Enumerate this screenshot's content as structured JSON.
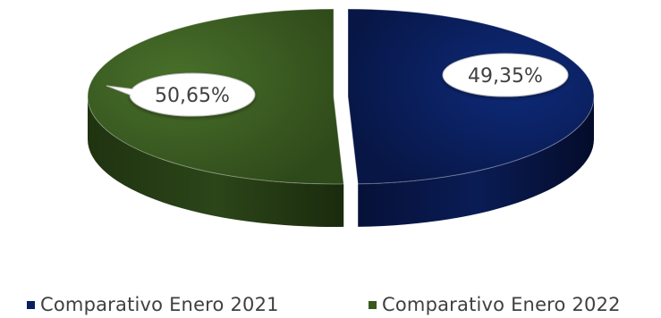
{
  "chart_data": {
    "type": "pie",
    "style": "3d-exploded",
    "categories": [
      "Comparativo Enero 2021",
      "Comparativo Enero 2022"
    ],
    "values": [
      49.35,
      50.65
    ],
    "data_labels": [
      "49,35%",
      "50,65%"
    ],
    "colors": [
      "#0a1f5c",
      "#38581f"
    ],
    "legend_position": "bottom",
    "title": ""
  }
}
